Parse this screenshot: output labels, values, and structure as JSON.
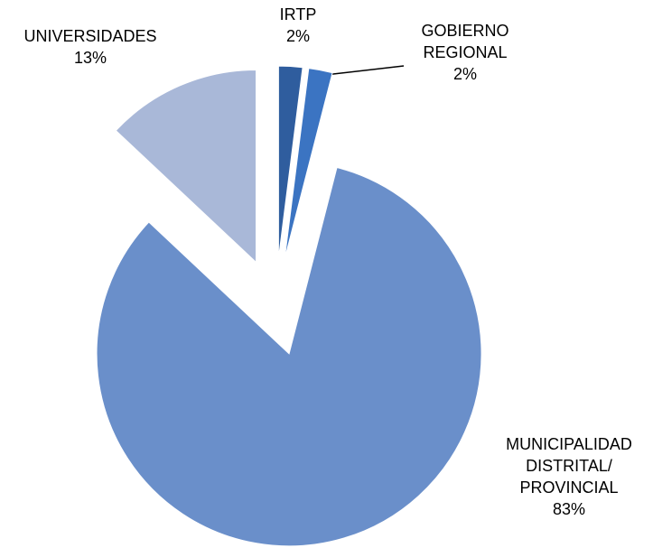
{
  "chart_data": {
    "type": "pie",
    "categories": [
      "IRTP",
      "GOBIERNO REGIONAL",
      "MUNICIPALIDAD DISTRITAL/ PROVINCIAL",
      "UNIVERSIDADES"
    ],
    "values": [
      2,
      2,
      83,
      13
    ],
    "value_labels": [
      "2%",
      "2%",
      "83%",
      "13%"
    ],
    "colors": [
      "#2f5d9e",
      "#3b74c2",
      "#6a8fca",
      "#a9b8d8"
    ]
  }
}
